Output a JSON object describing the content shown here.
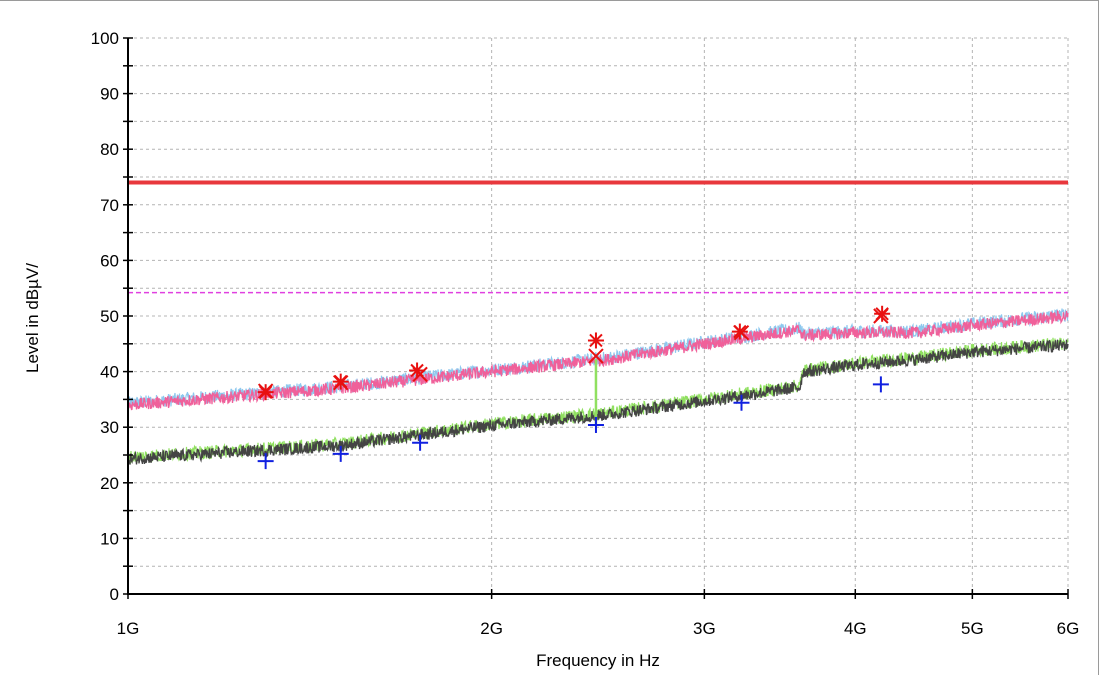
{
  "chart_data": {
    "type": "line",
    "title": "",
    "xlabel": "Frequency in Hz",
    "ylabel": "Level in dBµV/",
    "x_scale": "log",
    "xlim": [
      1000000000,
      6000000000
    ],
    "ylim": [
      0,
      100
    ],
    "x_ticks": [
      {
        "value": 1000000000,
        "label": "1G"
      },
      {
        "value": 2000000000,
        "label": "2G"
      },
      {
        "value": 3000000000,
        "label": "3G"
      },
      {
        "value": 4000000000,
        "label": "4G"
      },
      {
        "value": 5000000000,
        "label": "5G"
      },
      {
        "value": 6000000000,
        "label": "6G"
      }
    ],
    "y_ticks": [
      {
        "value": 0,
        "label": "0"
      },
      {
        "value": 10,
        "label": "10"
      },
      {
        "value": 20,
        "label": "20"
      },
      {
        "value": 30,
        "label": "30"
      },
      {
        "value": 40,
        "label": "40"
      },
      {
        "value": 50,
        "label": "50"
      },
      {
        "value": 60,
        "label": "60"
      },
      {
        "value": 70,
        "label": "70"
      },
      {
        "value": 80,
        "label": "80"
      },
      {
        "value": 90,
        "label": "90"
      },
      {
        "value": 100,
        "label": "100"
      }
    ],
    "grid": true,
    "limit_lines": [
      {
        "value": 74,
        "color": "#e8383d",
        "style": "solid"
      },
      {
        "value": 54.2,
        "color": "#e040e0",
        "style": "dashed"
      }
    ],
    "series": [
      {
        "color": "#f0609a",
        "underlay_color": "#8ec8ee",
        "style": "noisy",
        "x": [
          1000000000,
          1500000000,
          2000000000,
          2500000000,
          3000000000,
          3600000000,
          3620000000,
          4000000000,
          4200000000,
          4500000000,
          5000000000,
          6000000000
        ],
        "y": [
          34,
          37,
          40,
          42.2,
          45,
          47.5,
          46.5,
          47,
          47,
          47,
          48.3,
          50
        ]
      },
      {
        "color": "#444444",
        "underlay_color": "#90e060",
        "style": "noisy",
        "x": [
          1000000000,
          1500000000,
          2000000000,
          2500000000,
          3000000000,
          3600000000,
          3620000000,
          4000000000,
          4500000000,
          5000000000,
          6000000000
        ],
        "y": [
          24.3,
          26.7,
          30.3,
          32.3,
          34.7,
          37.2,
          39.9,
          41.2,
          42.2,
          43.5,
          44.8
        ]
      }
    ],
    "markers": [
      {
        "type": "star",
        "color": "#e81010",
        "points": [
          {
            "x": 1300000000,
            "y": 36.3
          },
          {
            "x": 1500000000,
            "y": 38.2
          },
          {
            "x": 1735000000,
            "y": 40.2
          },
          {
            "x": 2440000000,
            "y": 45.6
          },
          {
            "x": 3210000000,
            "y": 47.2
          },
          {
            "x": 4210000000,
            "y": 50.4
          }
        ]
      },
      {
        "type": "x",
        "color": "#e81010",
        "points": [
          {
            "x": 1300000000,
            "y": 36.5
          },
          {
            "x": 1500000000,
            "y": 38
          },
          {
            "x": 1745000000,
            "y": 39.5
          },
          {
            "x": 2440000000,
            "y": 42.8
          },
          {
            "x": 3220000000,
            "y": 47
          },
          {
            "x": 4200000000,
            "y": 50
          }
        ]
      },
      {
        "type": "plus",
        "color": "#1020e0",
        "points": [
          {
            "x": 1300000000,
            "y": 23.9
          },
          {
            "x": 1500000000,
            "y": 25.2
          },
          {
            "x": 1745000000,
            "y": 27.2
          },
          {
            "x": 2440000000,
            "y": 30.4
          },
          {
            "x": 3220000000,
            "y": 34.4
          },
          {
            "x": 4200000000,
            "y": 37.7
          }
        ]
      }
    ],
    "spike": {
      "x": 2440000000,
      "y_from": 30.6,
      "y_to": 42.2,
      "color": "#90e060"
    }
  }
}
